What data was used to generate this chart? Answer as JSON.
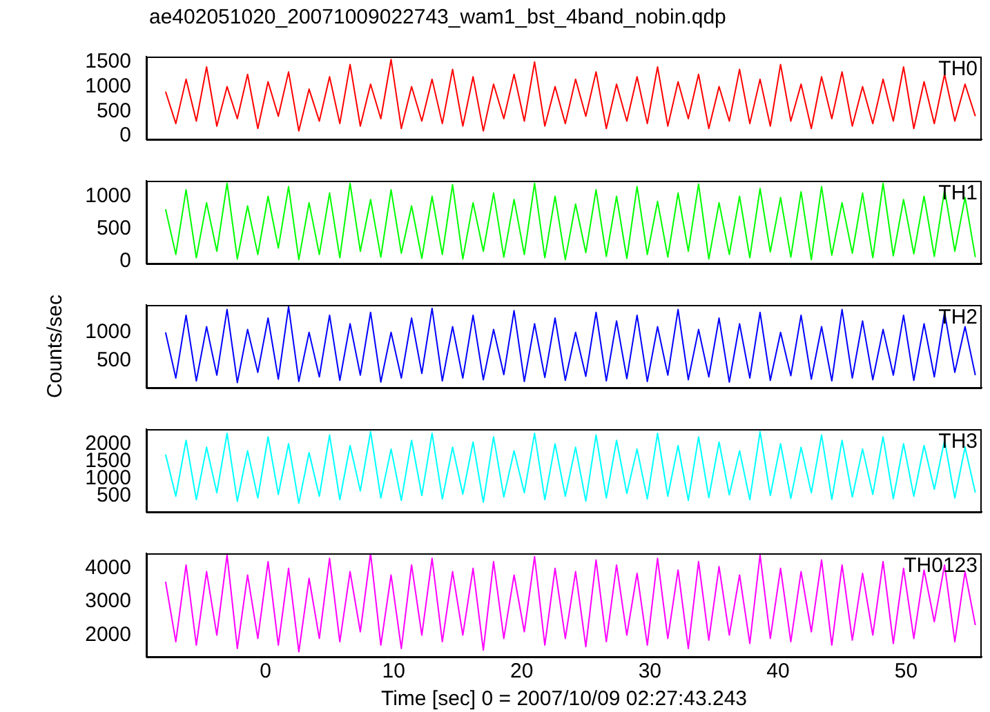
{
  "chart_data": [
    {
      "type": "line",
      "title": "ae402051020_20071009022743_wam1_bst_4band_nobin.qdp",
      "xlim": [
        -9.3,
        55.9
      ],
      "xticks": [
        0,
        10,
        20,
        30,
        40,
        50
      ],
      "ylim": [
        -70,
        1610
      ],
      "yticks": [
        0,
        500,
        1000,
        1500
      ],
      "tick_labels": "y",
      "legend": false,
      "grid": false,
      "x": [
        -7.8,
        -7,
        -6.2,
        -5.4,
        -4.6,
        -3.8,
        -3,
        -2.2,
        -1.4,
        -0.6,
        0.2,
        1,
        1.8,
        2.6,
        3.4,
        4.2,
        5,
        5.8,
        6.6,
        7.4,
        8.2,
        9,
        9.8,
        10.6,
        11.4,
        12.2,
        13,
        13.8,
        14.6,
        15.4,
        16.2,
        17,
        17.8,
        18.6,
        19.4,
        20.2,
        21,
        21.8,
        22.6,
        23.4,
        24.2,
        25,
        25.8,
        26.6,
        27.4,
        28.2,
        29,
        29.8,
        30.6,
        31.4,
        32.2,
        33,
        33.8,
        34.6,
        35.4,
        36.2,
        37,
        37.8,
        38.6,
        39.4,
        40.2,
        41,
        41.8,
        42.6,
        43.4,
        44.2,
        45,
        45.8,
        46.6,
        47.4,
        48.2,
        49,
        49.8,
        50.6,
        51.4,
        52.2,
        53,
        53.8,
        54.6,
        55.4
      ],
      "series": [
        {
          "name": "TH0",
          "color": "#ff0000",
          "values": [
            900,
            250,
            1150,
            300,
            1400,
            200,
            1000,
            350,
            1250,
            150,
            1100,
            400,
            1300,
            100,
            950,
            300,
            1200,
            250,
            1450,
            200,
            1050,
            350,
            1550,
            150,
            1000,
            300,
            1150,
            250,
            1350,
            200,
            1200,
            100,
            1050,
            350,
            1250,
            300,
            1500,
            200,
            1000,
            250,
            1150,
            400,
            1300,
            150,
            1050,
            300,
            1200,
            250,
            1400,
            200,
            1100,
            350,
            1250,
            150,
            1000,
            300,
            1350,
            250,
            1150,
            200,
            1450,
            300,
            1050,
            150,
            1200,
            350,
            1300,
            200,
            1000,
            250,
            1150,
            300,
            1400,
            150,
            1100,
            250,
            1250,
            300,
            1050,
            400
          ]
        }
      ]
    },
    {
      "type": "line",
      "xlim": [
        -9.3,
        55.9
      ],
      "xticks": [
        0,
        10,
        20,
        30,
        40,
        50
      ],
      "ylim": [
        -40,
        1240
      ],
      "yticks": [
        0,
        500,
        1000
      ],
      "tick_labels": "y",
      "legend": false,
      "grid": false,
      "x": [
        -7.8,
        -7,
        -6.2,
        -5.4,
        -4.6,
        -3.8,
        -3,
        -2.2,
        -1.4,
        -0.6,
        0.2,
        1,
        1.8,
        2.6,
        3.4,
        4.2,
        5,
        5.8,
        6.6,
        7.4,
        8.2,
        9,
        9.8,
        10.6,
        11.4,
        12.2,
        13,
        13.8,
        14.6,
        15.4,
        16.2,
        17,
        17.8,
        18.6,
        19.4,
        20.2,
        21,
        21.8,
        22.6,
        23.4,
        24.2,
        25,
        25.8,
        26.6,
        27.4,
        28.2,
        29,
        29.8,
        30.6,
        31.4,
        32.2,
        33,
        33.8,
        34.6,
        35.4,
        36.2,
        37,
        37.8,
        38.6,
        39.4,
        40.2,
        41,
        41.8,
        42.6,
        43.4,
        44.2,
        45,
        45.8,
        46.6,
        47.4,
        48.2,
        49,
        49.8,
        50.6,
        51.4,
        52.2,
        53,
        53.8,
        54.6,
        55.4
      ],
      "series": [
        {
          "name": "TH1",
          "color": "#00ff00",
          "values": [
            800,
            100,
            1100,
            50,
            900,
            150,
            1200,
            30,
            850,
            100,
            1000,
            200,
            1150,
            20,
            900,
            100,
            1050,
            50,
            1200,
            150,
            950,
            60,
            1100,
            120,
            850,
            40,
            1000,
            100,
            1180,
            30,
            900,
            150,
            1050,
            60,
            950,
            100,
            1200,
            50,
            1000,
            20,
            880,
            130,
            1100,
            70,
            1000,
            40,
            1150,
            100,
            920,
            60,
            1050,
            150,
            1190,
            30,
            900,
            100,
            1000,
            50,
            1120,
            140,
            980,
            60,
            1070,
            20,
            1150,
            90,
            900,
            120,
            1050,
            50,
            1200,
            80,
            950,
            110,
            1000,
            70,
            1100,
            150,
            980,
            60
          ]
        }
      ]
    },
    {
      "type": "line",
      "ylabel": "Counts/sec",
      "xlim": [
        -9.3,
        55.9
      ],
      "xticks": [
        0,
        10,
        20,
        30,
        40,
        50
      ],
      "ylim": [
        30,
        1480
      ],
      "yticks": [
        500,
        1000
      ],
      "tick_labels": "y",
      "legend": false,
      "grid": false,
      "x": [
        -7.8,
        -7,
        -6.2,
        -5.4,
        -4.6,
        -3.8,
        -3,
        -2.2,
        -1.4,
        -0.6,
        0.2,
        1,
        1.8,
        2.6,
        3.4,
        4.2,
        5,
        5.8,
        6.6,
        7.4,
        8.2,
        9,
        9.8,
        10.6,
        11.4,
        12.2,
        13,
        13.8,
        14.6,
        15.4,
        16.2,
        17,
        17.8,
        18.6,
        19.4,
        20.2,
        21,
        21.8,
        22.6,
        23.4,
        24.2,
        25,
        25.8,
        26.6,
        27.4,
        28.2,
        29,
        29.8,
        30.6,
        31.4,
        32.2,
        33,
        33.8,
        34.6,
        35.4,
        36.2,
        37,
        37.8,
        38.6,
        39.4,
        40.2,
        41,
        41.8,
        42.6,
        43.4,
        44.2,
        45,
        45.8,
        46.6,
        47.4,
        48.2,
        49,
        49.8,
        50.6,
        51.4,
        52.2,
        53,
        53.8,
        54.6,
        55.4
      ],
      "series": [
        {
          "name": "TH2",
          "color": "#0000ff",
          "values": [
            1000,
            200,
            1300,
            150,
            1100,
            250,
            1400,
            120,
            1050,
            300,
            1250,
            180,
            1450,
            140,
            1000,
            220,
            1300,
            160,
            1150,
            250,
            1350,
            130,
            1000,
            200,
            1250,
            280,
            1420,
            150,
            1100,
            200,
            1300,
            170,
            1050,
            260,
            1380,
            140,
            1150,
            210,
            1250,
            160,
            1000,
            230,
            1350,
            150,
            1200,
            190,
            1300,
            140,
            1100,
            250,
            1400,
            170,
            1050,
            220,
            1250,
            130,
            1150,
            200,
            1350,
            160,
            1000,
            240,
            1300,
            180,
            1100,
            150,
            1400,
            200,
            1200,
            170,
            1050,
            250,
            1300,
            160,
            1150,
            220,
            1350,
            300,
            1100,
            250
          ]
        }
      ]
    },
    {
      "type": "line",
      "xlim": [
        -9.3,
        55.9
      ],
      "xticks": [
        0,
        10,
        20,
        30,
        40,
        50
      ],
      "ylim": [
        50,
        2420
      ],
      "yticks": [
        500,
        1000,
        1500,
        2000
      ],
      "tick_labels": "y",
      "legend": false,
      "grid": false,
      "x": [
        -7.8,
        -7,
        -6.2,
        -5.4,
        -4.6,
        -3.8,
        -3,
        -2.2,
        -1.4,
        -0.6,
        0.2,
        1,
        1.8,
        2.6,
        3.4,
        4.2,
        5,
        5.8,
        6.6,
        7.4,
        8.2,
        9,
        9.8,
        10.6,
        11.4,
        12.2,
        13,
        13.8,
        14.6,
        15.4,
        16.2,
        17,
        17.8,
        18.6,
        19.4,
        20.2,
        21,
        21.8,
        22.6,
        23.4,
        24.2,
        25,
        25.8,
        26.6,
        27.4,
        28.2,
        29,
        29.8,
        30.6,
        31.4,
        32.2,
        33,
        33.8,
        34.6,
        35.4,
        36.2,
        37,
        37.8,
        38.6,
        39.4,
        40.2,
        41,
        41.8,
        42.6,
        43.4,
        44.2,
        45,
        45.8,
        46.6,
        47.4,
        48.2,
        49,
        49.8,
        50.6,
        51.4,
        52.2,
        53,
        53.8,
        54.6,
        55.4
      ],
      "series": [
        {
          "name": "TH3",
          "color": "#00ffff",
          "values": [
            1700,
            500,
            2100,
            400,
            1900,
            600,
            2300,
            350,
            1800,
            450,
            2200,
            550,
            2000,
            300,
            1750,
            500,
            2250,
            400,
            1950,
            650,
            2350,
            450,
            1850,
            380,
            2100,
            520,
            2300,
            420,
            1900,
            560,
            2050,
            330,
            2200,
            480,
            1800,
            600,
            2300,
            400,
            2000,
            500,
            1900,
            360,
            2250,
            450,
            2100,
            580,
            1850,
            420,
            2300,
            500,
            1950,
            380,
            2200,
            460,
            2050,
            540,
            1800,
            400,
            2350,
            520,
            2000,
            440,
            1900,
            600,
            2250,
            410,
            2100,
            480,
            1850,
            550,
            2200,
            430,
            2000,
            500,
            1950,
            700,
            2100,
            450,
            1900,
            600
          ]
        }
      ]
    },
    {
      "type": "line",
      "xlabel": "Time [sec] 0 = 2007/10/09 02:27:43.243",
      "xlim": [
        -9.3,
        55.9
      ],
      "xticks": [
        0,
        10,
        20,
        30,
        40,
        50
      ],
      "ylim": [
        1350,
        4450
      ],
      "yticks": [
        2000,
        3000,
        4000
      ],
      "legend": false,
      "grid": false,
      "x": [
        -7.8,
        -7,
        -6.2,
        -5.4,
        -4.6,
        -3.8,
        -3,
        -2.2,
        -1.4,
        -0.6,
        0.2,
        1,
        1.8,
        2.6,
        3.4,
        4.2,
        5,
        5.8,
        6.6,
        7.4,
        8.2,
        9,
        9.8,
        10.6,
        11.4,
        12.2,
        13,
        13.8,
        14.6,
        15.4,
        16.2,
        17,
        17.8,
        18.6,
        19.4,
        20.2,
        21,
        21.8,
        22.6,
        23.4,
        24.2,
        25,
        25.8,
        26.6,
        27.4,
        28.2,
        29,
        29.8,
        30.6,
        31.4,
        32.2,
        33,
        33.8,
        34.6,
        35.4,
        36.2,
        37,
        37.8,
        38.6,
        39.4,
        40.2,
        41,
        41.8,
        42.6,
        43.4,
        44.2,
        45,
        45.8,
        46.6,
        47.4,
        48.2,
        49,
        49.8,
        50.6,
        51.4,
        52.2,
        53,
        53.8,
        54.6,
        55.4
      ],
      "series": [
        {
          "name": "TH0123",
          "color": "#ff00ff",
          "values": [
            3600,
            1800,
            4100,
            1700,
            3900,
            2000,
            4400,
            1600,
            3800,
            1900,
            4200,
            1700,
            4000,
            1500,
            3700,
            1900,
            4300,
            1800,
            3900,
            2100,
            4450,
            1700,
            3800,
            1600,
            4100,
            2000,
            4300,
            1800,
            3900,
            2000,
            4000,
            1550,
            4200,
            1900,
            3800,
            2100,
            4350,
            1700,
            4000,
            1900,
            3900,
            1650,
            4250,
            1800,
            4100,
            2000,
            3850,
            1700,
            4300,
            1900,
            3950,
            1600,
            4200,
            1850,
            4050,
            2000,
            3800,
            1750,
            4400,
            1900,
            4000,
            1800,
            3900,
            2100,
            4250,
            1700,
            4100,
            1850,
            3850,
            2000,
            4200,
            1750,
            4000,
            1900,
            3950,
            2400,
            4100,
            1800,
            3900,
            2300
          ]
        }
      ]
    }
  ]
}
